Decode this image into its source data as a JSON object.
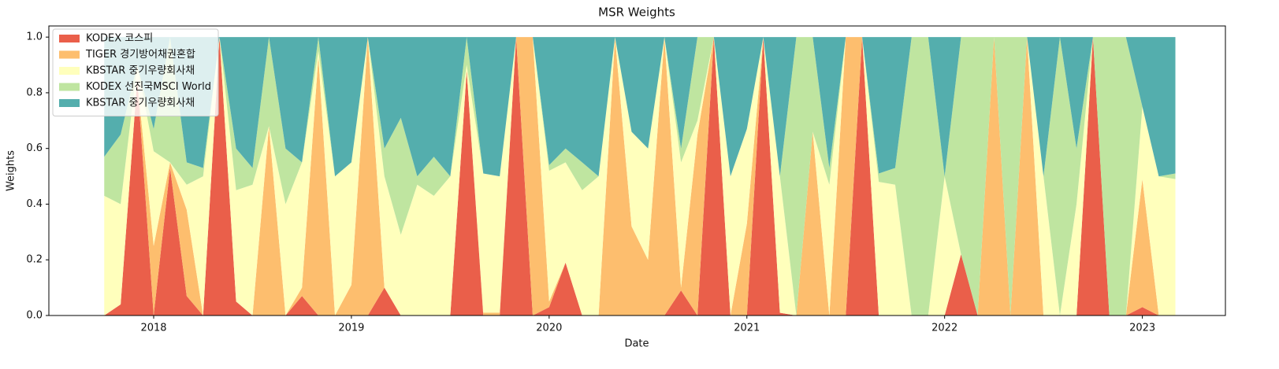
{
  "chart_data": {
    "type": "stackedarea",
    "title": "MSR Weights",
    "x_label": "Date",
    "y_label": "Weights",
    "x": [
      2017.75,
      2017.833,
      2017.917,
      2018,
      2018.083,
      2018.167,
      2018.25,
      2018.333,
      2018.417,
      2018.5,
      2018.583,
      2018.667,
      2018.75,
      2018.833,
      2018.917,
      2019,
      2019.083,
      2019.167,
      2019.25,
      2019.333,
      2019.417,
      2019.5,
      2019.583,
      2019.667,
      2019.75,
      2019.833,
      2019.917,
      2020,
      2020.083,
      2020.167,
      2020.25,
      2020.333,
      2020.417,
      2020.5,
      2020.583,
      2020.667,
      2020.75,
      2020.833,
      2020.917,
      2021,
      2021.083,
      2021.167,
      2021.25,
      2021.333,
      2021.417,
      2021.5,
      2021.583,
      2021.667,
      2021.75,
      2021.833,
      2021.917,
      2022,
      2022.083,
      2022.167,
      2022.25,
      2022.333,
      2022.417,
      2022.5,
      2022.583,
      2022.667,
      2022.75,
      2022.833,
      2022.917,
      2023,
      2023.083,
      2023.167
    ],
    "series": [
      {
        "name": "KODEX 코스피",
        "color": "#ea5f4a",
        "values": [
          0,
          0.04,
          0.85,
          0,
          0.53,
          0.07,
          0,
          1,
          0.05,
          0,
          0,
          0,
          0.07,
          0,
          0,
          0,
          0,
          0.1,
          0,
          0,
          0,
          0,
          0.88,
          0,
          0,
          1,
          0,
          0.03,
          0.19,
          0,
          0,
          0,
          0,
          0,
          0,
          0.09,
          0,
          1,
          0,
          0,
          1,
          0.01,
          0,
          0,
          0,
          0,
          1,
          0,
          0,
          0,
          0,
          0,
          0.22,
          0,
          0,
          0,
          0,
          0,
          0,
          0,
          1,
          0,
          0,
          0.03,
          0,
          0
        ]
      },
      {
        "name": "TIGER 경기방어채권혼합",
        "color": "#fdbe6e",
        "values": [
          0,
          0,
          0,
          0.25,
          0.02,
          0.31,
          0,
          0,
          0,
          0,
          0.68,
          0,
          0.03,
          0.93,
          0,
          0.11,
          1,
          0,
          0,
          0,
          0,
          0,
          0,
          0.01,
          0.01,
          0,
          1,
          0.02,
          0,
          0,
          0,
          1,
          0.32,
          0.2,
          1,
          0.01,
          0.65,
          0,
          0,
          0.33,
          0,
          0,
          0,
          0.66,
          0,
          1,
          0,
          0,
          0,
          0,
          0,
          0,
          0,
          0,
          1,
          0,
          1,
          0,
          0,
          0,
          0,
          0,
          0,
          0.46,
          0,
          0
        ]
      },
      {
        "name": "KBSTAR 중기우량회사채",
        "color": "#ffffbc",
        "values": [
          0.43,
          0.36,
          0.05,
          0.34,
          0,
          0.09,
          0.5,
          0,
          0.4,
          0.47,
          0,
          0.4,
          0.45,
          0.02,
          0.5,
          0.44,
          0,
          0.4,
          0.29,
          0.47,
          0.43,
          0.5,
          0.02,
          0.5,
          0.49,
          0,
          0,
          0.47,
          0.36,
          0.45,
          0.5,
          0,
          0.34,
          0.4,
          0,
          0.45,
          0.05,
          0,
          0.5,
          0.34,
          0,
          0.49,
          0,
          0,
          0.47,
          0,
          0,
          0.48,
          0.47,
          0,
          0,
          0.5,
          0,
          0,
          0,
          0,
          0,
          0.5,
          0,
          0.4,
          0,
          0,
          0,
          0.26,
          0.5,
          0.49
        ]
      },
      {
        "name": "KODEX 선진국MSCI World",
        "color": "#bfe5a0",
        "values": [
          0.14,
          0.25,
          0,
          0.08,
          0.45,
          0.08,
          0.03,
          0,
          0.15,
          0.06,
          0.32,
          0.2,
          0,
          0.05,
          0,
          0,
          0,
          0.1,
          0.42,
          0.03,
          0.14,
          0,
          0.1,
          0,
          0,
          0,
          0,
          0.02,
          0.05,
          0.1,
          0,
          0,
          0,
          0,
          0,
          0.05,
          0.3,
          0,
          0,
          0,
          0,
          0,
          1,
          0.34,
          0.06,
          0,
          0,
          0.03,
          0.06,
          1,
          1,
          0,
          0.78,
          1,
          0,
          1,
          0,
          0,
          1,
          0.2,
          0,
          1,
          1,
          0,
          0,
          0.02
        ]
      },
      {
        "name": "KBSTAR 중기우량회사채",
        "color": "#54aead",
        "values": [
          0.43,
          0.35,
          0.1,
          0.33,
          0,
          0.45,
          0.47,
          0,
          0.4,
          0.47,
          0,
          0.4,
          0.45,
          0,
          0.5,
          0.45,
          0,
          0.4,
          0.29,
          0.5,
          0.43,
          0.5,
          0,
          0.49,
          0.5,
          0,
          0,
          0.46,
          0.4,
          0.45,
          0.5,
          0,
          0.34,
          0.4,
          0,
          0.4,
          0,
          0,
          0.5,
          0.33,
          0,
          0.5,
          0,
          0,
          0.47,
          0,
          0,
          0.49,
          0.47,
          0,
          0,
          0.5,
          0,
          0,
          0,
          0,
          0,
          0.5,
          0,
          0.4,
          0,
          0,
          0,
          0.25,
          0.5,
          0.49
        ]
      }
    ],
    "xlim": [
      2017.47,
      2023.42
    ],
    "xticks": [
      2018,
      2019,
      2020,
      2021,
      2022,
      2023
    ],
    "ylim": [
      0,
      1.04
    ],
    "yticks": [
      {
        "value": 0,
        "label": "0.0"
      },
      {
        "value": 0.2,
        "label": "0.2"
      },
      {
        "value": 0.4,
        "label": "0.4"
      },
      {
        "value": 0.6,
        "label": "0.6"
      },
      {
        "value": 0.8,
        "label": "0.8"
      },
      {
        "value": 1,
        "label": "1.0"
      }
    ],
    "legend": "upper-left"
  }
}
